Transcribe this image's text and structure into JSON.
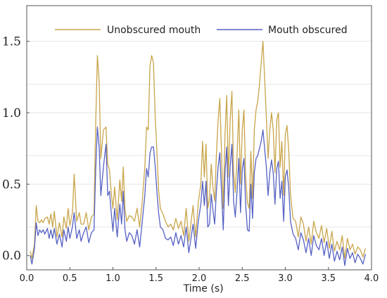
{
  "chart_data": {
    "type": "line",
    "title": "",
    "xlabel": "Time (s)",
    "ylabel": "",
    "xlim": [
      0.0,
      4.0
    ],
    "ylim": [
      -0.1,
      1.75
    ],
    "x_ticks": [
      "0.0",
      "0.5",
      "1.0",
      "1.5",
      "2.0",
      "2.5",
      "3.0",
      "3.5",
      "4.0"
    ],
    "y_ticks": [
      "0.0",
      "0.5",
      "1.0",
      "1.5"
    ],
    "grid": "horizontal",
    "legend": "top",
    "series": [
      {
        "name": "Unobscured mouth",
        "color": "#c9a54a",
        "points": [
          [
            0.04,
            0.03
          ],
          [
            0.06,
            -0.02
          ],
          [
            0.09,
            0.08
          ],
          [
            0.11,
            0.35
          ],
          [
            0.13,
            0.24
          ],
          [
            0.15,
            0.23
          ],
          [
            0.17,
            0.25
          ],
          [
            0.19,
            0.23
          ],
          [
            0.21,
            0.26
          ],
          [
            0.24,
            0.27
          ],
          [
            0.26,
            0.22
          ],
          [
            0.28,
            0.29
          ],
          [
            0.3,
            0.2
          ],
          [
            0.32,
            0.31
          ],
          [
            0.35,
            0.13
          ],
          [
            0.38,
            0.23
          ],
          [
            0.41,
            0.13
          ],
          [
            0.43,
            0.27
          ],
          [
            0.46,
            0.19
          ],
          [
            0.48,
            0.33
          ],
          [
            0.5,
            0.21
          ],
          [
            0.53,
            0.3
          ],
          [
            0.55,
            0.57
          ],
          [
            0.58,
            0.24
          ],
          [
            0.61,
            0.3
          ],
          [
            0.63,
            0.22
          ],
          [
            0.66,
            0.22
          ],
          [
            0.69,
            0.3
          ],
          [
            0.72,
            0.18
          ],
          [
            0.75,
            0.27
          ],
          [
            0.78,
            0.29
          ],
          [
            0.8,
            0.92
          ],
          [
            0.82,
            1.4
          ],
          [
            0.84,
            1.22
          ],
          [
            0.86,
            0.68
          ],
          [
            0.89,
            0.88
          ],
          [
            0.92,
            0.9
          ],
          [
            0.94,
            0.64
          ],
          [
            0.96,
            0.6
          ],
          [
            0.98,
            0.44
          ],
          [
            1.0,
            0.33
          ],
          [
            1.02,
            0.48
          ],
          [
            1.05,
            0.25
          ],
          [
            1.08,
            0.53
          ],
          [
            1.1,
            0.38
          ],
          [
            1.12,
            0.62
          ],
          [
            1.14,
            0.33
          ],
          [
            1.16,
            0.24
          ],
          [
            1.19,
            0.28
          ],
          [
            1.22,
            0.27
          ],
          [
            1.25,
            0.24
          ],
          [
            1.28,
            0.33
          ],
          [
            1.31,
            0.2
          ],
          [
            1.34,
            0.38
          ],
          [
            1.37,
            0.62
          ],
          [
            1.39,
            0.9
          ],
          [
            1.41,
            0.88
          ],
          [
            1.43,
            1.33
          ],
          [
            1.45,
            1.4
          ],
          [
            1.47,
            1.35
          ],
          [
            1.49,
            0.98
          ],
          [
            1.51,
            0.73
          ],
          [
            1.53,
            0.46
          ],
          [
            1.55,
            0.33
          ],
          [
            1.58,
            0.29
          ],
          [
            1.61,
            0.24
          ],
          [
            1.64,
            0.2
          ],
          [
            1.67,
            0.22
          ],
          [
            1.7,
            0.18
          ],
          [
            1.73,
            0.26
          ],
          [
            1.76,
            0.19
          ],
          [
            1.79,
            0.24
          ],
          [
            1.82,
            0.14
          ],
          [
            1.85,
            0.33
          ],
          [
            1.88,
            0.1
          ],
          [
            1.9,
            0.2
          ],
          [
            1.93,
            0.35
          ],
          [
            1.96,
            0.13
          ],
          [
            1.99,
            0.37
          ],
          [
            2.02,
            0.5
          ],
          [
            2.04,
            0.8
          ],
          [
            2.06,
            0.55
          ],
          [
            2.08,
            0.78
          ],
          [
            2.1,
            0.33
          ],
          [
            2.12,
            0.4
          ],
          [
            2.14,
            0.64
          ],
          [
            2.16,
            0.48
          ],
          [
            2.18,
            0.38
          ],
          [
            2.2,
            0.7
          ],
          [
            2.22,
            0.95
          ],
          [
            2.24,
            1.1
          ],
          [
            2.26,
            0.72
          ],
          [
            2.28,
            0.33
          ],
          [
            2.3,
            0.85
          ],
          [
            2.32,
            1.12
          ],
          [
            2.34,
            0.55
          ],
          [
            2.36,
            0.95
          ],
          [
            2.38,
            1.15
          ],
          [
            2.4,
            0.58
          ],
          [
            2.42,
            0.44
          ],
          [
            2.44,
            0.7
          ],
          [
            2.46,
            1.02
          ],
          [
            2.48,
            0.5
          ],
          [
            2.5,
            0.88
          ],
          [
            2.52,
            1.02
          ],
          [
            2.54,
            0.56
          ],
          [
            2.56,
            0.37
          ],
          [
            2.58,
            0.33
          ],
          [
            2.6,
            0.73
          ],
          [
            2.62,
            0.4
          ],
          [
            2.64,
            0.88
          ],
          [
            2.66,
            1.02
          ],
          [
            2.68,
            1.08
          ],
          [
            2.7,
            1.2
          ],
          [
            2.72,
            1.35
          ],
          [
            2.74,
            1.5
          ],
          [
            2.76,
            1.24
          ],
          [
            2.78,
            0.97
          ],
          [
            2.8,
            0.68
          ],
          [
            2.82,
            0.88
          ],
          [
            2.84,
            1.0
          ],
          [
            2.86,
            0.88
          ],
          [
            2.88,
            0.58
          ],
          [
            2.9,
            0.95
          ],
          [
            2.92,
            1.0
          ],
          [
            2.94,
            0.62
          ],
          [
            2.96,
            0.8
          ],
          [
            2.98,
            0.42
          ],
          [
            3.0,
            0.85
          ],
          [
            3.02,
            0.91
          ],
          [
            3.04,
            0.73
          ],
          [
            3.06,
            0.42
          ],
          [
            3.09,
            0.26
          ],
          [
            3.12,
            0.24
          ],
          [
            3.15,
            0.13
          ],
          [
            3.18,
            0.27
          ],
          [
            3.21,
            0.22
          ],
          [
            3.24,
            0.1
          ],
          [
            3.27,
            0.2
          ],
          [
            3.3,
            0.08
          ],
          [
            3.33,
            0.24
          ],
          [
            3.36,
            0.16
          ],
          [
            3.39,
            0.12
          ],
          [
            3.42,
            0.21
          ],
          [
            3.45,
            0.09
          ],
          [
            3.48,
            0.19
          ],
          [
            3.51,
            0.05
          ],
          [
            3.54,
            0.17
          ],
          [
            3.57,
            0.03
          ],
          [
            3.6,
            0.1
          ],
          [
            3.63,
            0.04
          ],
          [
            3.66,
            0.14
          ],
          [
            3.69,
            -0.02
          ],
          [
            3.72,
            0.12
          ],
          [
            3.75,
            0.04
          ],
          [
            3.78,
            0.08
          ],
          [
            3.81,
            0.01
          ],
          [
            3.84,
            0.06
          ],
          [
            3.87,
            0.04
          ],
          [
            3.9,
            -0.01
          ],
          [
            3.93,
            0.05
          ]
        ]
      },
      {
        "name": "Mouth obscured",
        "color": "#5661c3",
        "points": [
          [
            0.04,
            0.0
          ],
          [
            0.06,
            -0.06
          ],
          [
            0.09,
            0.05
          ],
          [
            0.11,
            0.23
          ],
          [
            0.13,
            0.14
          ],
          [
            0.15,
            0.18
          ],
          [
            0.17,
            0.16
          ],
          [
            0.19,
            0.18
          ],
          [
            0.21,
            0.15
          ],
          [
            0.24,
            0.19
          ],
          [
            0.26,
            0.12
          ],
          [
            0.28,
            0.18
          ],
          [
            0.3,
            0.12
          ],
          [
            0.32,
            0.19
          ],
          [
            0.35,
            0.08
          ],
          [
            0.38,
            0.15
          ],
          [
            0.41,
            0.06
          ],
          [
            0.43,
            0.18
          ],
          [
            0.46,
            0.1
          ],
          [
            0.48,
            0.2
          ],
          [
            0.5,
            0.12
          ],
          [
            0.53,
            0.2
          ],
          [
            0.55,
            0.3
          ],
          [
            0.58,
            0.12
          ],
          [
            0.61,
            0.18
          ],
          [
            0.63,
            0.1
          ],
          [
            0.66,
            0.16
          ],
          [
            0.69,
            0.2
          ],
          [
            0.72,
            0.09
          ],
          [
            0.75,
            0.16
          ],
          [
            0.78,
            0.18
          ],
          [
            0.8,
            0.6
          ],
          [
            0.82,
            0.9
          ],
          [
            0.84,
            0.76
          ],
          [
            0.86,
            0.42
          ],
          [
            0.89,
            0.62
          ],
          [
            0.92,
            0.78
          ],
          [
            0.94,
            0.42
          ],
          [
            0.96,
            0.45
          ],
          [
            0.98,
            0.3
          ],
          [
            1.0,
            0.17
          ],
          [
            1.02,
            0.33
          ],
          [
            1.05,
            0.13
          ],
          [
            1.08,
            0.36
          ],
          [
            1.1,
            0.22
          ],
          [
            1.12,
            0.45
          ],
          [
            1.14,
            0.18
          ],
          [
            1.16,
            0.1
          ],
          [
            1.19,
            0.16
          ],
          [
            1.22,
            0.14
          ],
          [
            1.25,
            0.08
          ],
          [
            1.28,
            0.18
          ],
          [
            1.31,
            0.06
          ],
          [
            1.34,
            0.24
          ],
          [
            1.37,
            0.42
          ],
          [
            1.39,
            0.61
          ],
          [
            1.41,
            0.55
          ],
          [
            1.43,
            0.72
          ],
          [
            1.45,
            0.76
          ],
          [
            1.47,
            0.76
          ],
          [
            1.49,
            0.63
          ],
          [
            1.51,
            0.45
          ],
          [
            1.53,
            0.3
          ],
          [
            1.55,
            0.2
          ],
          [
            1.58,
            0.18
          ],
          [
            1.61,
            0.12
          ],
          [
            1.64,
            0.11
          ],
          [
            1.67,
            0.13
          ],
          [
            1.7,
            0.07
          ],
          [
            1.73,
            0.16
          ],
          [
            1.76,
            0.08
          ],
          [
            1.79,
            0.14
          ],
          [
            1.82,
            0.06
          ],
          [
            1.85,
            0.2
          ],
          [
            1.88,
            0.02
          ],
          [
            1.9,
            0.1
          ],
          [
            1.93,
            0.22
          ],
          [
            1.96,
            0.05
          ],
          [
            1.99,
            0.24
          ],
          [
            2.02,
            0.36
          ],
          [
            2.04,
            0.52
          ],
          [
            2.06,
            0.35
          ],
          [
            2.08,
            0.52
          ],
          [
            2.1,
            0.2
          ],
          [
            2.12,
            0.22
          ],
          [
            2.14,
            0.43
          ],
          [
            2.16,
            0.32
          ],
          [
            2.18,
            0.22
          ],
          [
            2.2,
            0.45
          ],
          [
            2.22,
            0.62
          ],
          [
            2.24,
            0.72
          ],
          [
            2.26,
            0.45
          ],
          [
            2.28,
            0.18
          ],
          [
            2.3,
            0.58
          ],
          [
            2.32,
            0.76
          ],
          [
            2.34,
            0.35
          ],
          [
            2.36,
            0.62
          ],
          [
            2.38,
            0.78
          ],
          [
            2.4,
            0.38
          ],
          [
            2.42,
            0.27
          ],
          [
            2.44,
            0.45
          ],
          [
            2.46,
            0.68
          ],
          [
            2.48,
            0.3
          ],
          [
            2.5,
            0.6
          ],
          [
            2.52,
            0.68
          ],
          [
            2.54,
            0.36
          ],
          [
            2.56,
            0.18
          ],
          [
            2.58,
            0.17
          ],
          [
            2.6,
            0.5
          ],
          [
            2.62,
            0.26
          ],
          [
            2.64,
            0.58
          ],
          [
            2.66,
            0.68
          ],
          [
            2.68,
            0.7
          ],
          [
            2.7,
            0.75
          ],
          [
            2.72,
            0.8
          ],
          [
            2.74,
            0.88
          ],
          [
            2.76,
            0.75
          ],
          [
            2.78,
            0.62
          ],
          [
            2.8,
            0.42
          ],
          [
            2.82,
            0.58
          ],
          [
            2.84,
            0.67
          ],
          [
            2.86,
            0.58
          ],
          [
            2.88,
            0.36
          ],
          [
            2.9,
            0.61
          ],
          [
            2.92,
            0.66
          ],
          [
            2.94,
            0.4
          ],
          [
            2.96,
            0.52
          ],
          [
            2.98,
            0.24
          ],
          [
            3.0,
            0.55
          ],
          [
            3.02,
            0.6
          ],
          [
            3.04,
            0.47
          ],
          [
            3.06,
            0.24
          ],
          [
            3.09,
            0.15
          ],
          [
            3.12,
            0.12
          ],
          [
            3.15,
            0.04
          ],
          [
            3.18,
            0.16
          ],
          [
            3.21,
            0.11
          ],
          [
            3.24,
            0.02
          ],
          [
            3.27,
            0.12
          ],
          [
            3.3,
            0.0
          ],
          [
            3.33,
            0.14
          ],
          [
            3.36,
            0.07
          ],
          [
            3.39,
            0.04
          ],
          [
            3.42,
            0.12
          ],
          [
            3.45,
            0.0
          ],
          [
            3.48,
            0.1
          ],
          [
            3.51,
            -0.02
          ],
          [
            3.54,
            0.08
          ],
          [
            3.57,
            -0.04
          ],
          [
            3.6,
            0.03
          ],
          [
            3.63,
            -0.03
          ],
          [
            3.66,
            0.06
          ],
          [
            3.69,
            -0.07
          ],
          [
            3.72,
            0.05
          ],
          [
            3.75,
            -0.02
          ],
          [
            3.78,
            0.02
          ],
          [
            3.81,
            -0.05
          ],
          [
            3.84,
            0.01
          ],
          [
            3.87,
            -0.02
          ],
          [
            3.9,
            -0.06
          ],
          [
            3.93,
            0.01
          ]
        ]
      }
    ]
  }
}
